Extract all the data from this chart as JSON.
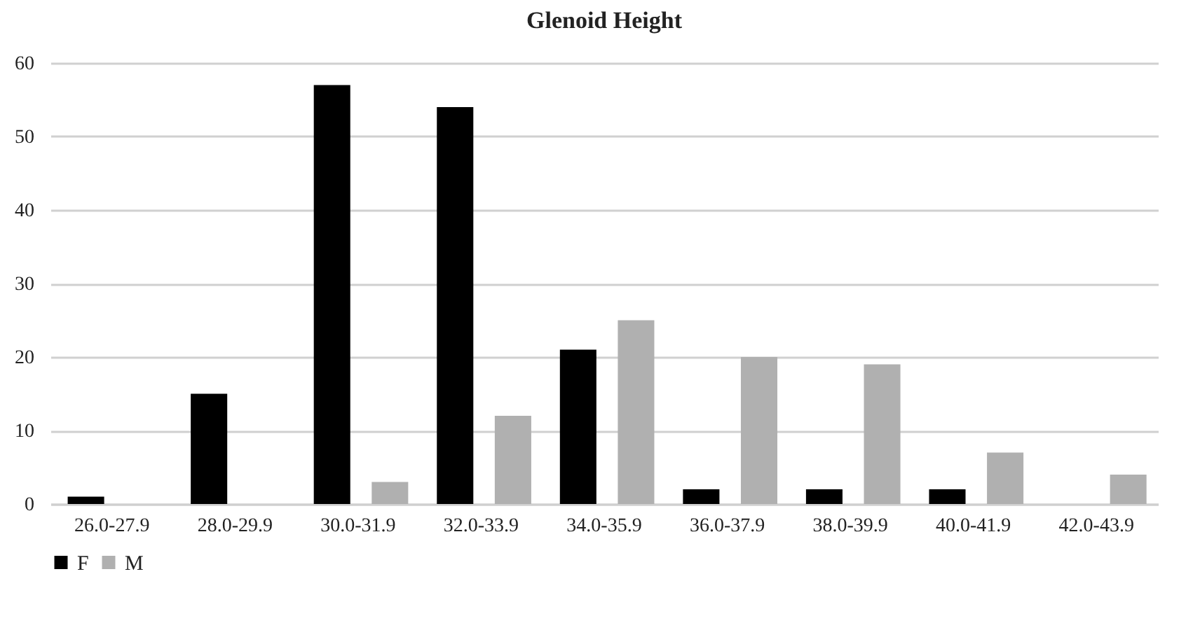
{
  "chart_data": {
    "type": "bar",
    "title": "Glenoid Height",
    "categories": [
      "26.0-27.9",
      "28.0-29.9",
      "30.0-31.9",
      "32.0-33.9",
      "34.0-35.9",
      "36.0-37.9",
      "38.0-39.9",
      "40.0-41.9",
      "42.0-43.9"
    ],
    "series": [
      {
        "name": "F",
        "color": "#000000",
        "values": [
          1,
          15,
          57,
          54,
          21,
          2,
          2,
          2,
          0
        ]
      },
      {
        "name": "M",
        "color": "#b0b0b0",
        "values": [
          0,
          0,
          3,
          12,
          25,
          20,
          19,
          7,
          4
        ]
      }
    ],
    "ylim": [
      0,
      60
    ],
    "yticks": [
      0,
      10,
      20,
      30,
      40,
      50,
      60
    ],
    "grid": "y",
    "legend": "bottom"
  }
}
